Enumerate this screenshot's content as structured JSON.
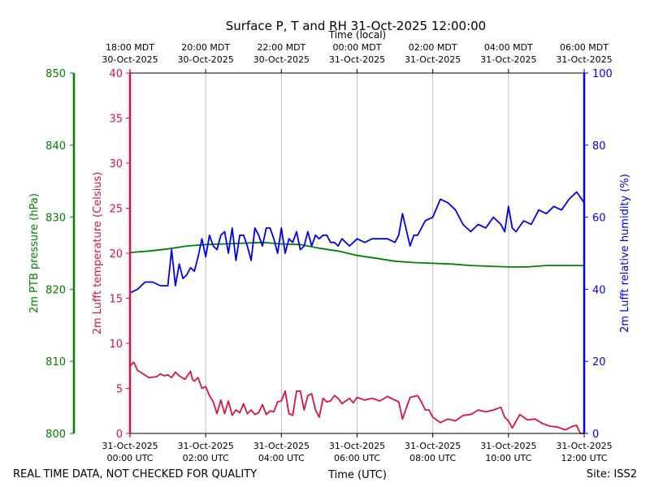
{
  "chart_data": {
    "type": "line",
    "title": "Surface P, T and RH 31-Oct-2025 12:00:00",
    "top_axis_title": "Time (local)",
    "xlabel": "Time (UTC)",
    "footer_left": "REAL TIME DATA, NOT CHECKED FOR QUALITY",
    "footer_right": "Site: ISS2",
    "xlim": [
      0,
      12
    ],
    "grid": "vertical",
    "x_ticks": [
      {
        "x": 0,
        "utc_date": "31-Oct-2025",
        "utc_time": "00:00 UTC",
        "local_time": "18:00 MDT",
        "local_date": "30-Oct-2025"
      },
      {
        "x": 2,
        "utc_date": "31-Oct-2025",
        "utc_time": "02:00 UTC",
        "local_time": "20:00 MDT",
        "local_date": "30-Oct-2025"
      },
      {
        "x": 4,
        "utc_date": "31-Oct-2025",
        "utc_time": "04:00 UTC",
        "local_time": "22:00 MDT",
        "local_date": "30-Oct-2025"
      },
      {
        "x": 6,
        "utc_date": "31-Oct-2025",
        "utc_time": "06:00 UTC",
        "local_time": "00:00 MDT",
        "local_date": "31-Oct-2025"
      },
      {
        "x": 8,
        "utc_date": "31-Oct-2025",
        "utc_time": "08:00 UTC",
        "local_time": "02:00 MDT",
        "local_date": "31-Oct-2025"
      },
      {
        "x": 10,
        "utc_date": "31-Oct-2025",
        "utc_time": "10:00 UTC",
        "local_time": "04:00 MDT",
        "local_date": "31-Oct-2025"
      },
      {
        "x": 12,
        "utc_date": "31-Oct-2025",
        "utc_time": "12:00 UTC",
        "local_time": "06:00 MDT",
        "local_date": "31-Oct-2025"
      }
    ],
    "axes": {
      "pressure": {
        "label": "2m PTB pressure (hPa)",
        "ylim": [
          800,
          850
        ],
        "ticks": [
          800,
          810,
          820,
          830,
          840,
          850
        ],
        "color": "#008000"
      },
      "temperature": {
        "label": "2m Lufft temperature (Celsius)",
        "ylim": [
          0,
          40
        ],
        "ticks": [
          0,
          5,
          10,
          15,
          20,
          25,
          30,
          35,
          40
        ],
        "color": "#dc143c"
      },
      "humidity": {
        "label": "2m Lufft relative humidity (%)",
        "ylim": [
          0,
          100
        ],
        "ticks": [
          0,
          20,
          40,
          60,
          80,
          100
        ],
        "color": "#0000ee"
      }
    },
    "series": [
      {
        "name": "pressure",
        "axis": "pressure",
        "color": "#008000",
        "x": [
          0,
          0.5,
          1,
          1.5,
          2,
          2.5,
          3,
          3.5,
          4,
          4.5,
          5,
          5.5,
          6,
          6.5,
          7,
          7.5,
          8,
          8.5,
          9,
          9.5,
          10,
          10.5,
          11,
          11.5,
          12
        ],
        "y": [
          825.1,
          825.3,
          825.6,
          826.0,
          826.2,
          826.3,
          826.4,
          826.5,
          826.3,
          826.2,
          825.7,
          825.3,
          824.7,
          824.3,
          823.9,
          823.7,
          823.6,
          823.5,
          823.3,
          823.2,
          823.1,
          823.1,
          823.3,
          823.3,
          823.3
        ]
      },
      {
        "name": "temperature",
        "axis": "temperature",
        "color": "#dc143c",
        "x": [
          0,
          0.1,
          0.2,
          0.35,
          0.5,
          0.7,
          0.8,
          0.9,
          1.0,
          1.1,
          1.2,
          1.3,
          1.45,
          1.6,
          1.65,
          1.7,
          1.8,
          1.9,
          2.0,
          2.1,
          2.2,
          2.3,
          2.4,
          2.5,
          2.6,
          2.7,
          2.8,
          2.9,
          3.0,
          3.1,
          3.2,
          3.3,
          3.4,
          3.5,
          3.6,
          3.7,
          3.8,
          3.9,
          4.0,
          4.1,
          4.2,
          4.3,
          4.4,
          4.5,
          4.6,
          4.7,
          4.8,
          4.9,
          5.0,
          5.1,
          5.2,
          5.3,
          5.4,
          5.5,
          5.6,
          5.7,
          5.8,
          5.9,
          6.0,
          6.2,
          6.4,
          6.6,
          6.8,
          7.0,
          7.1,
          7.2,
          7.4,
          7.6,
          7.7,
          7.8,
          7.9,
          8.0,
          8.2,
          8.4,
          8.6,
          8.8,
          9.0,
          9.2,
          9.4,
          9.6,
          9.8,
          9.9,
          10.0,
          10.1,
          10.3,
          10.5,
          10.7,
          10.9,
          11.1,
          11.3,
          11.5,
          11.7,
          11.8,
          11.9,
          12.0
        ],
        "y": [
          7.5,
          7.9,
          7.0,
          6.6,
          6.2,
          6.3,
          6.6,
          6.4,
          6.5,
          6.2,
          6.8,
          6.4,
          6.0,
          6.9,
          6.0,
          5.8,
          6.2,
          5.0,
          5.2,
          4.2,
          3.5,
          2.2,
          3.7,
          2.2,
          3.6,
          2.0,
          2.6,
          2.3,
          3.3,
          2.2,
          2.6,
          2.1,
          2.3,
          3.2,
          2.1,
          2.5,
          2.4,
          3.5,
          3.6,
          4.7,
          2.2,
          2.0,
          4.7,
          4.7,
          2.6,
          4.2,
          4.4,
          2.6,
          1.8,
          3.9,
          3.5,
          3.6,
          4.2,
          3.9,
          3.3,
          3.6,
          3.9,
          3.4,
          4.0,
          3.7,
          3.9,
          3.6,
          4.1,
          3.7,
          3.5,
          1.6,
          4.0,
          4.2,
          3.5,
          2.6,
          2.6,
          1.8,
          1.2,
          1.6,
          1.4,
          2.0,
          2.1,
          2.6,
          2.4,
          2.6,
          2.9,
          1.8,
          1.4,
          0.6,
          2.1,
          1.5,
          1.6,
          1.1,
          0.8,
          0.7,
          0.4,
          0.8,
          0.9,
          0.0,
          0.0
        ]
      },
      {
        "name": "humidity",
        "axis": "humidity",
        "color": "#0000ee",
        "x": [
          0,
          0.2,
          0.4,
          0.6,
          0.8,
          1.0,
          1.1,
          1.2,
          1.3,
          1.4,
          1.5,
          1.6,
          1.7,
          1.8,
          1.9,
          2.0,
          2.1,
          2.2,
          2.3,
          2.4,
          2.5,
          2.6,
          2.7,
          2.8,
          2.9,
          3.0,
          3.1,
          3.2,
          3.3,
          3.4,
          3.5,
          3.6,
          3.7,
          3.8,
          3.9,
          4.0,
          4.1,
          4.2,
          4.3,
          4.4,
          4.5,
          4.6,
          4.7,
          4.8,
          4.9,
          5.0,
          5.1,
          5.2,
          5.3,
          5.4,
          5.5,
          5.6,
          5.8,
          6.0,
          6.2,
          6.4,
          6.6,
          6.8,
          7.0,
          7.1,
          7.2,
          7.4,
          7.5,
          7.6,
          7.8,
          8.0,
          8.2,
          8.4,
          8.6,
          8.8,
          9.0,
          9.2,
          9.4,
          9.6,
          9.8,
          9.9,
          10.0,
          10.1,
          10.2,
          10.4,
          10.6,
          10.8,
          11.0,
          11.2,
          11.4,
          11.6,
          11.8,
          12.0
        ],
        "y": [
          39,
          40,
          42,
          42,
          41,
          41,
          51,
          41,
          47,
          43,
          44,
          46,
          45,
          49,
          54,
          49,
          55,
          52,
          51,
          55,
          56,
          50,
          57,
          48,
          55,
          55,
          52,
          48,
          57,
          55,
          52,
          57,
          57,
          54,
          50,
          57,
          50,
          54,
          53,
          56,
          51,
          52,
          56,
          52,
          55,
          54,
          55,
          55,
          53,
          53,
          52,
          54,
          52,
          54,
          53,
          54,
          54,
          54,
          53,
          55,
          61,
          52,
          55,
          55,
          59,
          60,
          65,
          64,
          62,
          58,
          56,
          58,
          57,
          60,
          58,
          56,
          63,
          57,
          56,
          59,
          58,
          62,
          61,
          63,
          62,
          65,
          67,
          64
        ]
      }
    ]
  }
}
